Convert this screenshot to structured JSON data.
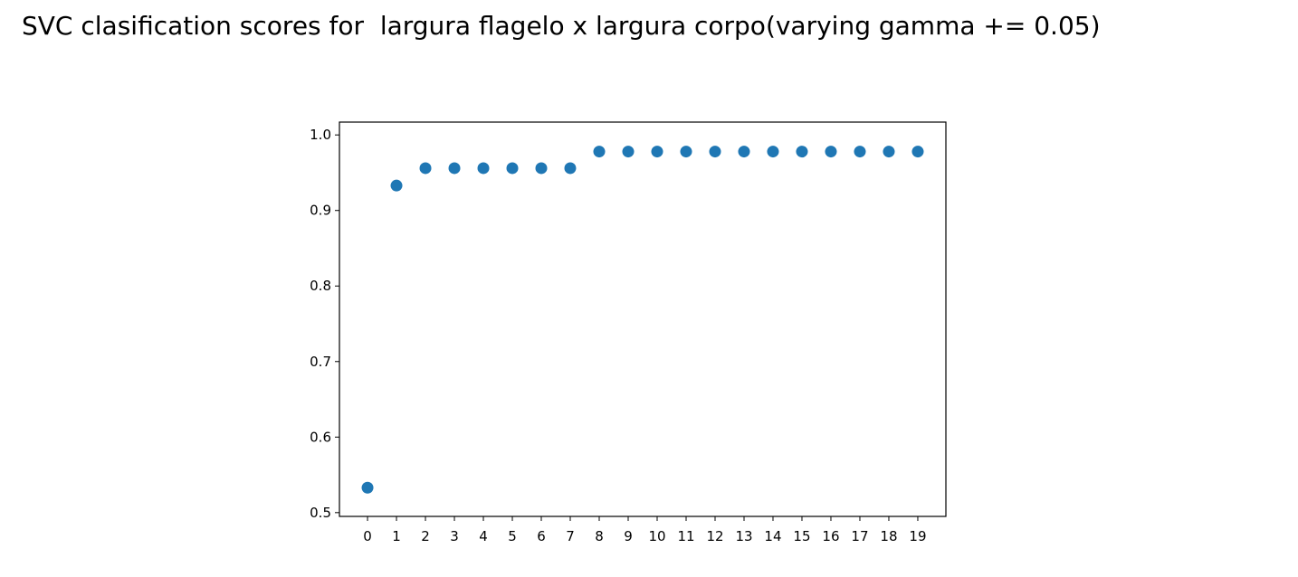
{
  "chart_data": {
    "type": "scatter",
    "title": "SVC clasification scores for  largura flagelo x largura corpo(varying gamma += 0.05)",
    "x": [
      0,
      1,
      2,
      3,
      4,
      5,
      6,
      7,
      8,
      9,
      10,
      11,
      12,
      13,
      14,
      15,
      16,
      17,
      18,
      19
    ],
    "series": [
      {
        "color": "#1f77b4",
        "values": [
          0.533,
          0.933,
          0.956,
          0.956,
          0.956,
          0.956,
          0.956,
          0.956,
          0.978,
          0.978,
          0.978,
          0.978,
          0.978,
          0.978,
          0.978,
          0.978,
          0.978,
          0.978,
          0.978,
          0.978
        ]
      }
    ],
    "xlim": [
      -0.97,
      19.97
    ],
    "xticks": [
      0,
      1,
      2,
      3,
      4,
      5,
      6,
      7,
      8,
      9,
      10,
      11,
      12,
      13,
      14,
      15,
      16,
      17,
      18,
      19
    ],
    "ylim": [
      0.495,
      1.017
    ],
    "yticks": [
      0.5,
      0.6,
      0.7,
      0.8,
      0.9,
      {
        "value": 1,
        "label": "1.0"
      }
    ],
    "grid": false
  }
}
